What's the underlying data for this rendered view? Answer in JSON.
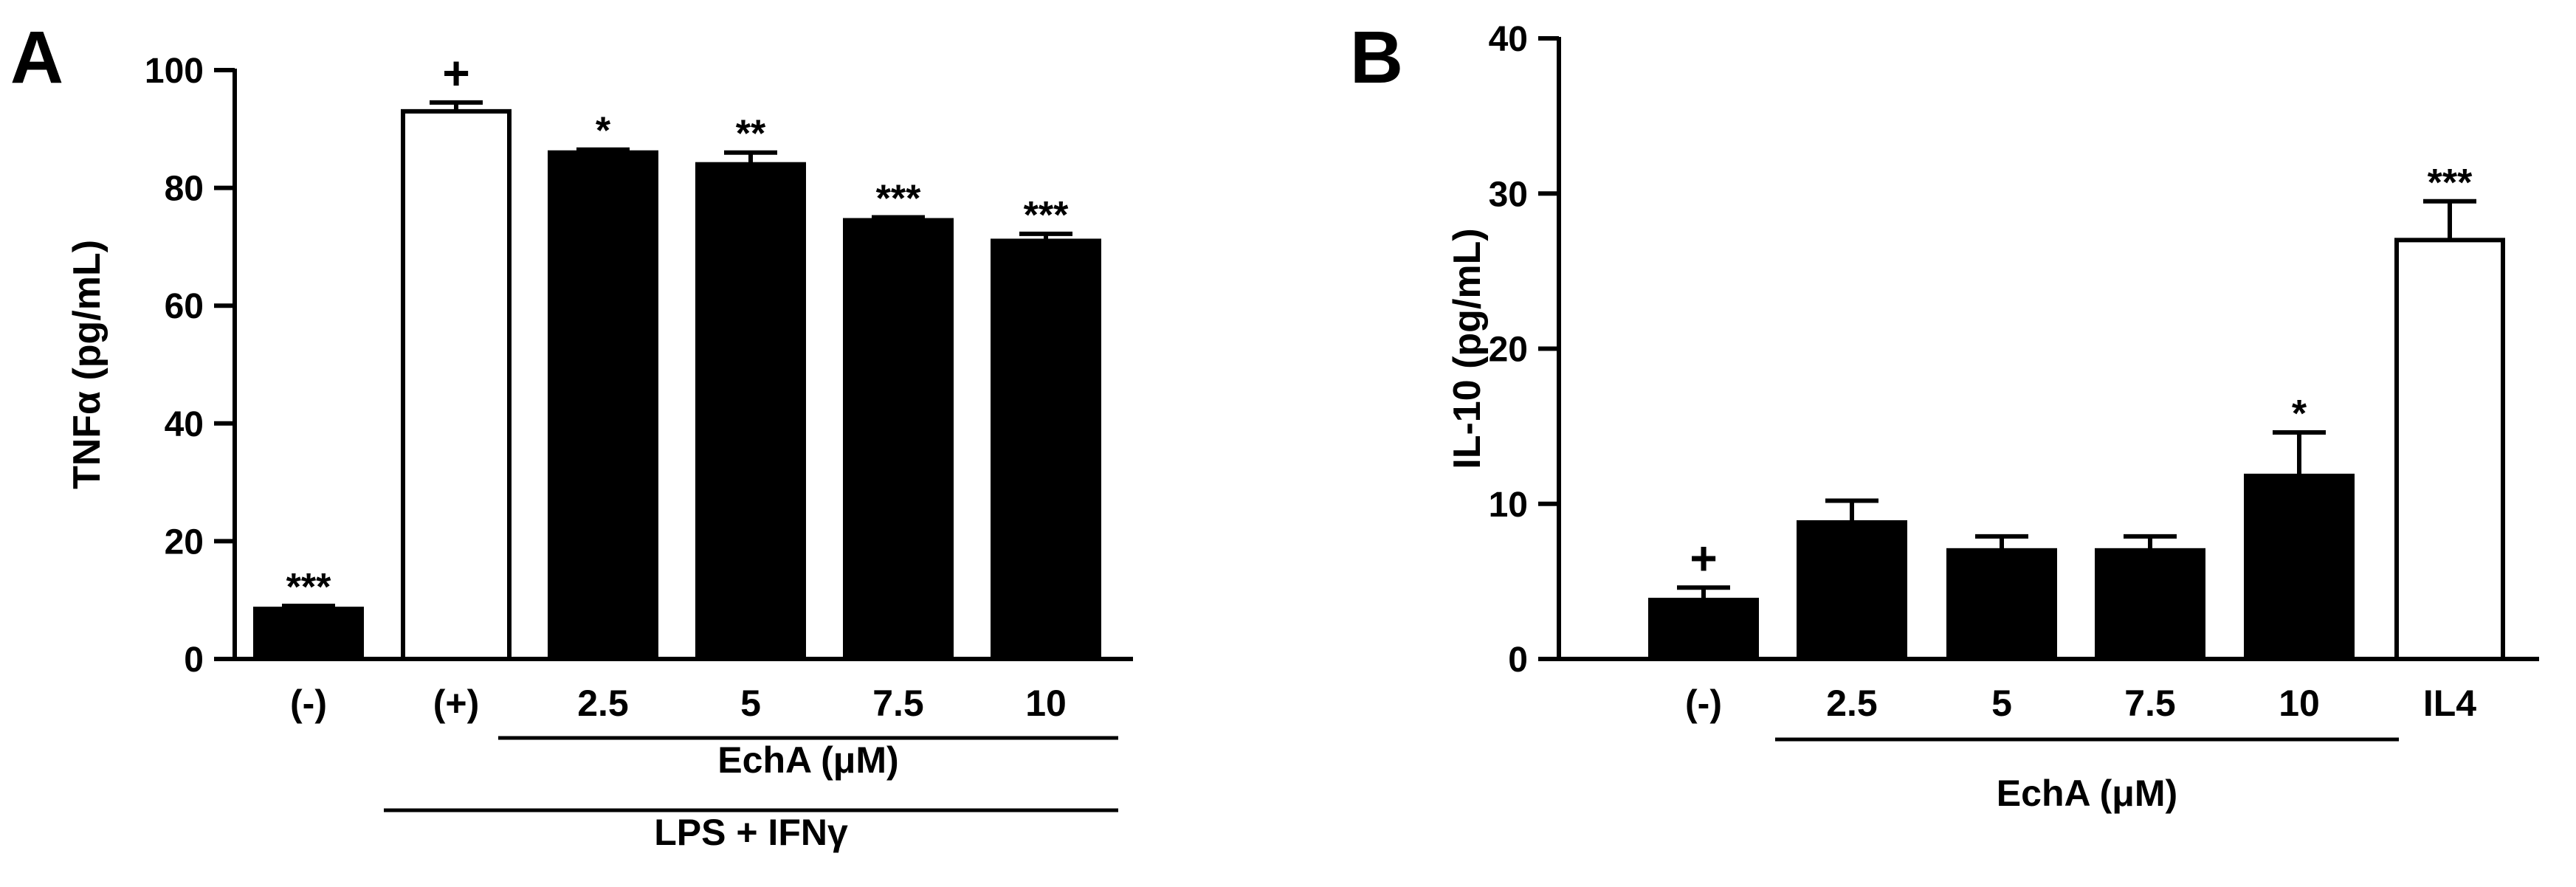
{
  "colors": {
    "ink": "#000000",
    "paper": "#ffffff"
  },
  "chart_data": [
    {
      "panel_label": "A",
      "type": "bar",
      "ylabel": "TNFα (pg/mL)",
      "ylim": [
        0,
        100
      ],
      "yticks": [
        0,
        20,
        40,
        60,
        80,
        100
      ],
      "categories": [
        "(-)",
        "(+)",
        "2.5",
        "5",
        "7.5",
        "10"
      ],
      "values": [
        8.5,
        93,
        86,
        84,
        74.5,
        71
      ],
      "errors": [
        0.5,
        1.5,
        0.5,
        2,
        0.5,
        1.2
      ],
      "fills": [
        "#000000",
        "#ffffff",
        "#000000",
        "#000000",
        "#000000",
        "#000000"
      ],
      "annotations": [
        "***",
        "+",
        "*",
        "**",
        "***",
        "***"
      ],
      "groups": [
        {
          "label": "EchA (μM)",
          "from": 2,
          "to": 5
        },
        {
          "label": "LPS + IFNγ",
          "from": 1,
          "to": 5
        }
      ],
      "grid": false
    },
    {
      "panel_label": "B",
      "type": "bar",
      "ylabel": "IL-10 (pg/mL)",
      "ylim": [
        0,
        40
      ],
      "yticks": [
        0,
        10,
        20,
        30,
        40
      ],
      "categories": [
        "(-)",
        "2.5",
        "5",
        "7.5",
        "10",
        "IL4"
      ],
      "values": [
        3.8,
        8.8,
        7,
        7,
        11.8,
        27
      ],
      "errors": [
        0.8,
        1.4,
        0.9,
        0.9,
        2.8,
        2.5
      ],
      "fills": [
        "#000000",
        "#000000",
        "#000000",
        "#000000",
        "#000000",
        "#ffffff"
      ],
      "annotations": [
        "+",
        "",
        "",
        "",
        "*",
        "***"
      ],
      "groups": [
        {
          "label": "EchA (μM)",
          "from": 1,
          "to": 4
        }
      ],
      "grid": false
    }
  ]
}
